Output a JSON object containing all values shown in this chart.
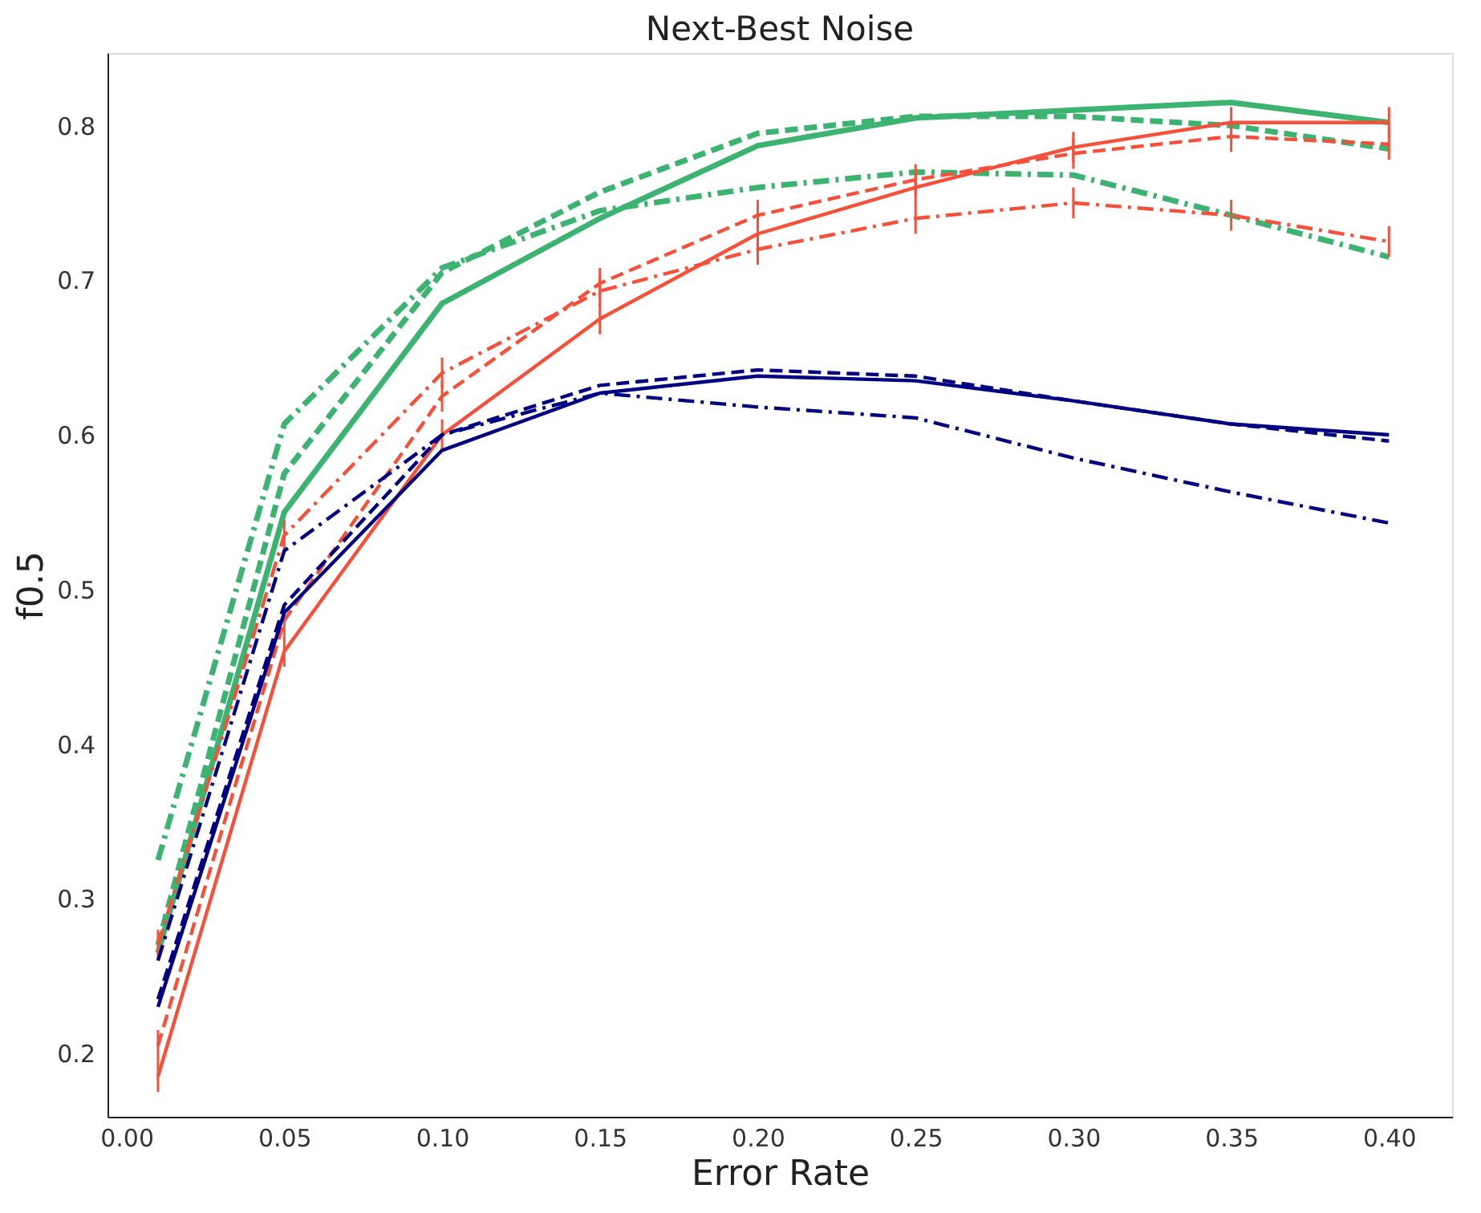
{
  "chart_data": {
    "type": "line",
    "title": "Next-Best Noise",
    "xlabel": "Error Rate",
    "ylabel": "f0.5",
    "x": [
      0.01,
      0.05,
      0.1,
      0.15,
      0.2,
      0.25,
      0.3,
      0.35,
      0.4
    ],
    "series": [
      {
        "color": "#3cb371",
        "line_style": "solid",
        "values": [
          0.265,
          0.55,
          0.685,
          0.74,
          0.787,
          0.805,
          0.81,
          0.815,
          0.802
        ]
      },
      {
        "color": "#3cb371",
        "line_style": "dashed",
        "values": [
          0.27,
          0.575,
          0.705,
          0.757,
          0.795,
          0.806,
          0.806,
          0.8,
          0.785
        ]
      },
      {
        "color": "#3cb371",
        "line_style": "dashdot",
        "values": [
          0.325,
          0.607,
          0.708,
          0.745,
          0.76,
          0.77,
          0.768,
          0.742,
          0.715
        ]
      },
      {
        "color": "#f4503a",
        "line_style": "solid",
        "values": [
          0.185,
          0.46,
          0.6,
          0.675,
          0.73,
          0.76,
          0.786,
          0.802,
          0.802
        ],
        "errors": [
          0.01,
          0.01,
          0.01,
          0.01,
          0.01,
          0.01,
          0.01,
          0.01,
          0.01
        ]
      },
      {
        "color": "#f4503a",
        "line_style": "dashed",
        "values": [
          0.205,
          0.48,
          0.625,
          0.698,
          0.742,
          0.765,
          0.782,
          0.793,
          0.788
        ],
        "errors": [
          0.01,
          0.01,
          0.01,
          0.01,
          0.01,
          0.01,
          0.01,
          0.01,
          0.01
        ]
      },
      {
        "color": "#f4503a",
        "line_style": "dashdot",
        "values": [
          0.27,
          0.535,
          0.64,
          0.693,
          0.72,
          0.74,
          0.75,
          0.742,
          0.725
        ],
        "errors": [
          0.01,
          0.01,
          0.01,
          0.01,
          0.01,
          0.01,
          0.01,
          0.01,
          0.01
        ]
      },
      {
        "color": "#000080",
        "line_style": "solid",
        "values": [
          0.23,
          0.485,
          0.59,
          0.627,
          0.638,
          0.635,
          0.622,
          0.607,
          0.6
        ]
      },
      {
        "color": "#000080",
        "line_style": "dashed",
        "values": [
          0.235,
          0.49,
          0.6,
          0.632,
          0.642,
          0.638,
          0.622,
          0.607,
          0.596
        ]
      },
      {
        "color": "#000080",
        "line_style": "dashdot",
        "values": [
          0.26,
          0.525,
          0.6,
          0.627,
          0.618,
          0.611,
          0.585,
          0.563,
          0.543
        ]
      }
    ],
    "xlim": [
      -0.006,
      0.42
    ],
    "ylim": [
      0.159,
      0.847
    ],
    "xticks": [
      {
        "value": 0.0,
        "label": "0.00"
      },
      {
        "value": 0.05,
        "label": "0.05"
      },
      {
        "value": 0.1,
        "label": "0.10"
      },
      {
        "value": 0.15,
        "label": "0.15"
      },
      {
        "value": 0.2,
        "label": "0.20"
      },
      {
        "value": 0.25,
        "label": "0.25"
      },
      {
        "value": 0.3,
        "label": "0.30"
      },
      {
        "value": 0.35,
        "label": "0.35"
      },
      {
        "value": 0.4,
        "label": "0.40"
      }
    ],
    "yticks": [
      0.2,
      0.3,
      0.4,
      0.5,
      0.6,
      0.7,
      0.8
    ],
    "grid": false,
    "marker": "none"
  }
}
